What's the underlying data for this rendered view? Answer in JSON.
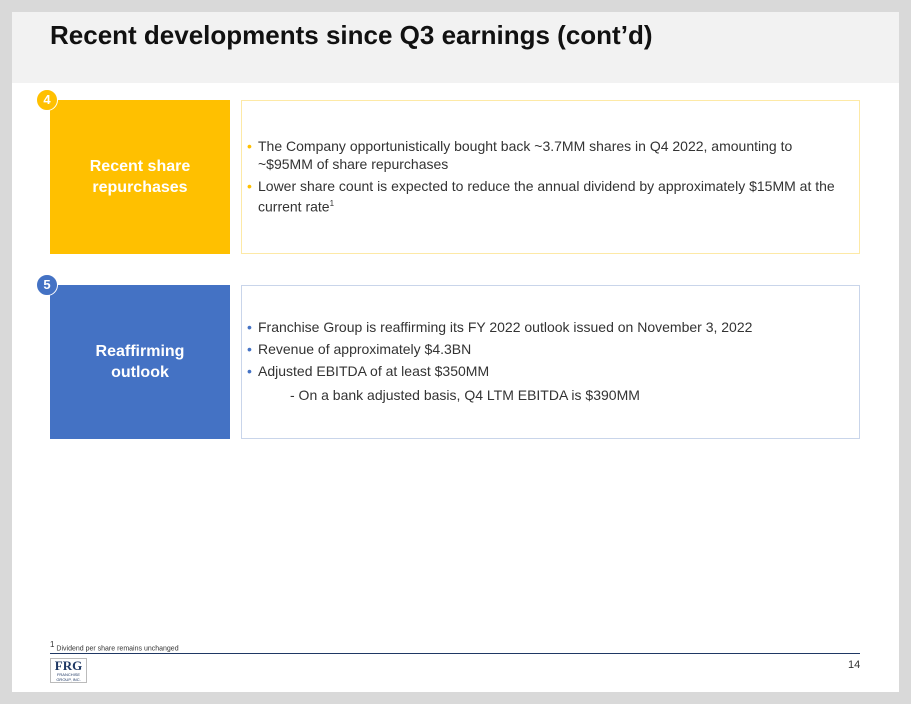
{
  "header": {
    "title": "Recent developments since Q3 earnings (cont’d)"
  },
  "sections": [
    {
      "number": "4",
      "label": "Recent share repurchases",
      "bullets": [
        {
          "text": "The Company opportunistically bought back ~3.7MM shares in Q4 2022, amounting to ~$95MM of share repurchases"
        },
        {
          "text": "Lower share count is expected to reduce the annual dividend by approximately $15MM at the current rate",
          "sup": "1"
        }
      ]
    },
    {
      "number": "5",
      "label": "Reaffirming outlook",
      "bullets": [
        {
          "text": "Franchise Group is reaffirming its FY 2022 outlook issued on November 3, 2022"
        },
        {
          "text": "Revenue of approximately $4.3BN"
        },
        {
          "text": "Adjusted EBITDA of at least $350MM"
        }
      ],
      "sub": "- On a bank adjusted basis, Q4 LTM EBITDA is $390MM"
    }
  ],
  "footnote": {
    "marker": "1",
    "text": "Dividend per share remains unchanged"
  },
  "footer": {
    "logo": "FRG",
    "logo_sub": "FRANCHISE GROUP, INC.",
    "page": "14"
  }
}
